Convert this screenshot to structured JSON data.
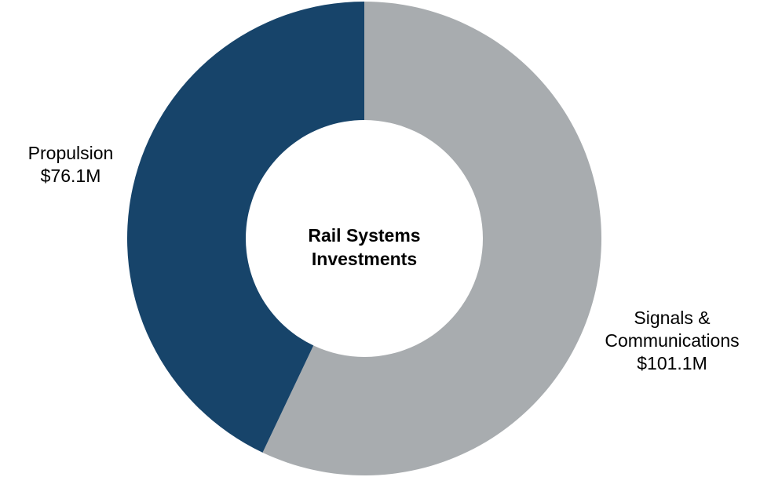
{
  "chart_data": {
    "type": "pie",
    "variant": "donut",
    "title": "Rail Systems Investments",
    "categories": [
      "Signals & Communications",
      "Propulsion"
    ],
    "values": [
      101.1,
      76.1
    ],
    "value_labels": [
      "$101.1M",
      "$76.1M"
    ],
    "units": "$M",
    "colors": [
      "#a8acaf",
      "#17446a"
    ],
    "start": "top",
    "direction": "clockwise"
  },
  "labels": {
    "propulsion": {
      "name": "Propulsion",
      "value": "$76.1M"
    },
    "signals": {
      "name_line1": "Signals &",
      "name_line2": "Communications",
      "value": "$101.1M"
    }
  }
}
